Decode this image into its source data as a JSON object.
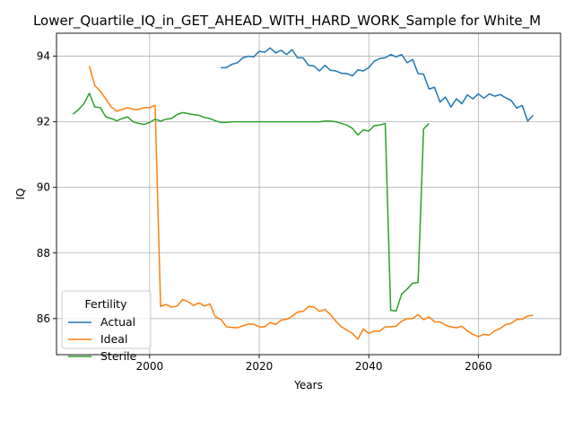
{
  "chart_data": {
    "type": "line",
    "title": "Lower_Quartile_IQ_in_GET_AHEAD_WITH_HARD_WORK_Sample for White_M",
    "xlabel": "Years",
    "ylabel": "IQ",
    "xlim": [
      1983,
      2075
    ],
    "ylim": [
      84.9,
      94.7
    ],
    "xticks": [
      2000,
      2020,
      2040,
      2060
    ],
    "yticks": [
      86,
      88,
      90,
      92,
      94
    ],
    "grid": true,
    "legend": {
      "title": "Fertility",
      "placement": "lower-left"
    },
    "series": [
      {
        "name": "Actual",
        "color": "#1f77b4",
        "x": [
          2013,
          2014,
          2015,
          2016,
          2017,
          2018,
          2019,
          2020,
          2021,
          2022,
          2023,
          2024,
          2025,
          2026,
          2027,
          2028,
          2029,
          2030,
          2031,
          2032,
          2033,
          2034,
          2035,
          2036,
          2037,
          2038,
          2039,
          2040,
          2041,
          2042,
          2043,
          2044,
          2045,
          2046,
          2047,
          2048,
          2049,
          2050,
          2051,
          2052,
          2053,
          2054,
          2055,
          2056,
          2057,
          2058,
          2059,
          2060,
          2061,
          2062,
          2063,
          2064,
          2065,
          2066,
          2067,
          2068,
          2069,
          2070
        ],
        "y": [
          93.65,
          93.65,
          93.75,
          93.8,
          93.95,
          94.0,
          93.98,
          94.15,
          94.12,
          94.25,
          94.1,
          94.18,
          94.05,
          94.2,
          93.95,
          93.95,
          93.72,
          93.7,
          93.55,
          93.72,
          93.57,
          93.55,
          93.48,
          93.47,
          93.4,
          93.58,
          93.55,
          93.65,
          93.85,
          93.93,
          93.95,
          94.05,
          93.98,
          94.05,
          93.8,
          93.9,
          93.47,
          93.45,
          93.0,
          93.05,
          92.6,
          92.75,
          92.45,
          92.7,
          92.55,
          92.82,
          92.7,
          92.85,
          92.72,
          92.85,
          92.78,
          92.83,
          92.73,
          92.65,
          92.42,
          92.5,
          92.02,
          92.2
        ]
      },
      {
        "name": "Ideal",
        "color": "#ff7f0e",
        "x": [
          1989,
          1990,
          1991,
          1992,
          1993,
          1994,
          1995,
          1996,
          1997,
          1998,
          1999,
          2000,
          2001,
          2002,
          2003,
          2004,
          2005,
          2006,
          2007,
          2008,
          2009,
          2010,
          2011,
          2012,
          2013,
          2014,
          2015,
          2016,
          2017,
          2018,
          2019,
          2020,
          2021,
          2022,
          2023,
          2024,
          2025,
          2026,
          2027,
          2028,
          2029,
          2030,
          2031,
          2032,
          2033,
          2034,
          2035,
          2036,
          2037,
          2038,
          2039,
          2040,
          2041,
          2042,
          2043,
          2044,
          2045,
          2046,
          2047,
          2048,
          2049,
          2050,
          2051,
          2052,
          2053,
          2054,
          2055,
          2056,
          2057,
          2058,
          2059,
          2060,
          2061,
          2062,
          2063,
          2064,
          2065,
          2066,
          2067,
          2068,
          2069,
          2070
        ],
        "y": [
          93.7,
          93.1,
          92.93,
          92.7,
          92.45,
          92.32,
          92.38,
          92.43,
          92.38,
          92.38,
          92.43,
          92.43,
          92.5,
          86.37,
          86.43,
          86.35,
          86.38,
          86.58,
          86.52,
          86.4,
          86.48,
          86.38,
          86.45,
          86.05,
          85.98,
          85.75,
          85.73,
          85.72,
          85.78,
          85.83,
          85.83,
          85.75,
          85.75,
          85.88,
          85.82,
          85.95,
          85.98,
          86.07,
          86.2,
          86.22,
          86.37,
          86.35,
          86.22,
          86.28,
          86.12,
          85.92,
          85.75,
          85.65,
          85.55,
          85.37,
          85.68,
          85.55,
          85.62,
          85.62,
          85.75,
          85.75,
          85.77,
          85.92,
          86.0,
          86.0,
          86.12,
          85.97,
          86.05,
          85.9,
          85.9,
          85.8,
          85.75,
          85.72,
          85.77,
          85.62,
          85.52,
          85.45,
          85.52,
          85.5,
          85.63,
          85.7,
          85.82,
          85.85,
          85.97,
          85.98,
          86.08,
          86.1
        ]
      },
      {
        "name": "Sterile",
        "color": "#2ca02c",
        "x": [
          1986,
          1987,
          1988,
          1989,
          1990,
          1991,
          1992,
          1993,
          1994,
          1995,
          1996,
          1997,
          1998,
          1999,
          2000,
          2001,
          2002,
          2003,
          2004,
          2005,
          2006,
          2007,
          2008,
          2009,
          2010,
          2011,
          2012,
          2013,
          2014,
          2015,
          2016,
          2017,
          2018,
          2019,
          2020,
          2021,
          2022,
          2023,
          2024,
          2025,
          2026,
          2027,
          2028,
          2029,
          2030,
          2031,
          2032,
          2033,
          2034,
          2035,
          2036,
          2037,
          2038,
          2039,
          2040,
          2041,
          2042,
          2043,
          2044,
          2045,
          2046,
          2047,
          2048,
          2049,
          2050,
          2051
        ],
        "y": [
          92.23,
          92.37,
          92.55,
          92.87,
          92.45,
          92.43,
          92.15,
          92.1,
          92.03,
          92.1,
          92.15,
          92.0,
          91.95,
          91.92,
          91.98,
          92.08,
          92.02,
          92.08,
          92.1,
          92.22,
          92.28,
          92.25,
          92.22,
          92.2,
          92.13,
          92.1,
          92.03,
          91.98,
          91.98,
          92.0,
          92.0,
          92.0,
          92.0,
          92.0,
          92.0,
          92.0,
          92.0,
          92.0,
          92.0,
          92.0,
          92.0,
          92.0,
          92.0,
          92.0,
          92.0,
          92.0,
          92.02,
          92.02,
          92.0,
          91.95,
          91.9,
          91.8,
          91.6,
          91.75,
          91.72,
          91.88,
          91.9,
          91.95,
          86.25,
          86.23,
          86.75,
          86.9,
          87.08,
          87.1,
          91.78,
          91.95
        ]
      }
    ]
  }
}
